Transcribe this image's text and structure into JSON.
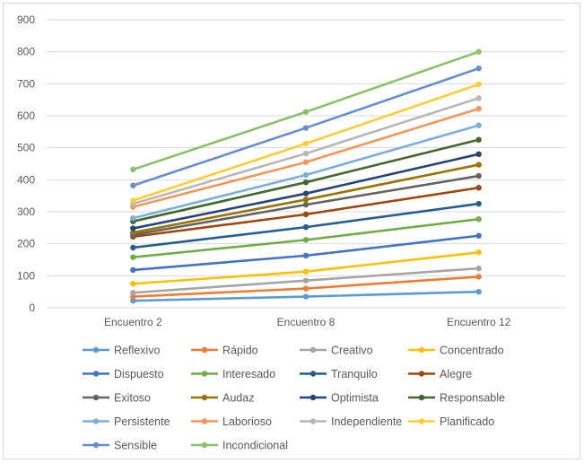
{
  "chart_data": {
    "type": "line",
    "categories": [
      "Encuentro 2",
      "Encuentro 8",
      "Encuentro 12"
    ],
    "ylim": [
      0,
      900
    ],
    "yticks": [
      0,
      100,
      200,
      300,
      400,
      500,
      600,
      700,
      800,
      900
    ],
    "grid": "horizontal",
    "legend_position": "bottom",
    "series": [
      {
        "name": "Reflexivo",
        "color": "#5b9bd5",
        "values": [
          22,
          35,
          50
        ]
      },
      {
        "name": "Rápido",
        "color": "#ed7d31",
        "values": [
          35,
          60,
          97
        ]
      },
      {
        "name": "Creativo",
        "color": "#a5a5a5",
        "values": [
          47,
          85,
          123
        ]
      },
      {
        "name": "Concentrado",
        "color": "#ffc000",
        "values": [
          75,
          113,
          173
        ]
      },
      {
        "name": "Dispuesto",
        "color": "#4472c4",
        "values": [
          118,
          163,
          225
        ]
      },
      {
        "name": "Interesado",
        "color": "#70ad47",
        "values": [
          158,
          212,
          277
        ]
      },
      {
        "name": "Tranquilo",
        "color": "#255e91",
        "values": [
          188,
          252,
          325
        ]
      },
      {
        "name": "Alegre",
        "color": "#9e480e",
        "values": [
          222,
          292,
          375
        ]
      },
      {
        "name": "Exitoso",
        "color": "#636363",
        "values": [
          228,
          322,
          412
        ]
      },
      {
        "name": "Audaz",
        "color": "#997300",
        "values": [
          235,
          338,
          447
        ]
      },
      {
        "name": "Optimista",
        "color": "#264478",
        "values": [
          248,
          357,
          480
        ]
      },
      {
        "name": "Responsable",
        "color": "#43682b",
        "values": [
          270,
          392,
          525
        ]
      },
      {
        "name": "Persistente",
        "color": "#7cafdd",
        "values": [
          280,
          415,
          570
        ]
      },
      {
        "name": "Laborioso",
        "color": "#f1975a",
        "values": [
          315,
          455,
          622
        ]
      },
      {
        "name": "Independiente",
        "color": "#b7b7b7",
        "values": [
          325,
          482,
          655
        ]
      },
      {
        "name": "Planificado",
        "color": "#ffcd33",
        "values": [
          335,
          513,
          698
        ]
      },
      {
        "name": "Sensible",
        "color": "#698ed0",
        "values": [
          382,
          562,
          748
        ]
      },
      {
        "name": "Incondicional",
        "color": "#8cc168",
        "values": [
          432,
          612,
          800
        ]
      }
    ]
  }
}
